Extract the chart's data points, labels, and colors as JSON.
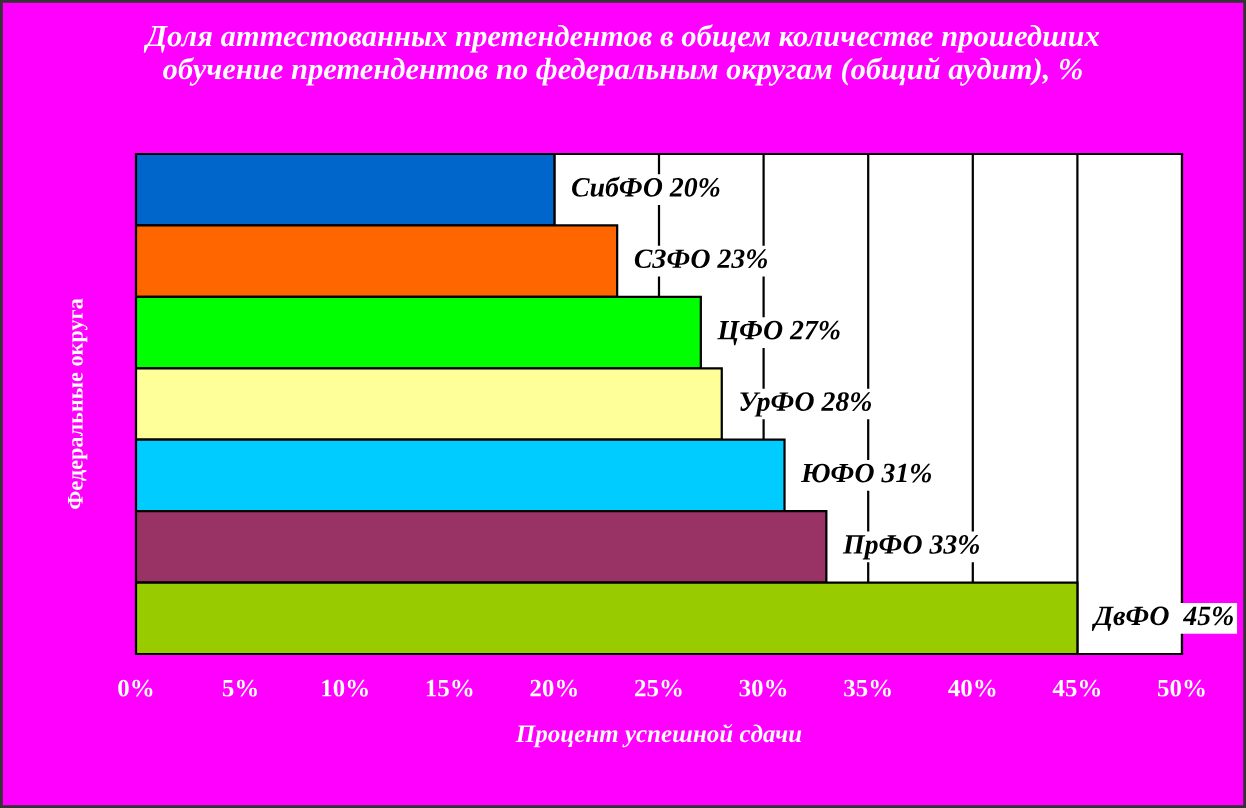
{
  "chart_data": {
    "type": "bar",
    "orientation": "horizontal",
    "title": "Доля аттестованных претендентов в общем количестве прошедших\nобучение претендентов по федеральным округам (общий аудит), %",
    "xlabel": "Процент успешной сдачи",
    "ylabel": "Федеральные округа",
    "categories": [
      null,
      null,
      null,
      null,
      null,
      null,
      null
    ],
    "values": [
      20,
      23,
      27,
      28,
      31,
      33,
      45
    ],
    "colors": [
      "#0066cc",
      "#ff6600",
      "#00ff00",
      "#ffff99",
      "#00ccff",
      "#993366",
      "#99cc00"
    ],
    "value_labels": [
      "СибФО 20%",
      "СЗФО 23%",
      "ЦФО 27%",
      "УрФО 28%",
      "ЮФО 31%",
      "ПрФО 33%",
      "ДвФО  45%"
    ],
    "xlim": [
      0,
      50
    ],
    "xticks": [
      {
        "value": 0,
        "label": "0%"
      },
      {
        "value": 5,
        "label": "5%"
      },
      {
        "value": 10,
        "label": "10%"
      },
      {
        "value": 15,
        "label": "15%"
      },
      {
        "value": 20,
        "label": "20%"
      },
      {
        "value": 25,
        "label": "25%"
      },
      {
        "value": 30,
        "label": "30%"
      },
      {
        "value": 35,
        "label": "35%"
      },
      {
        "value": 40,
        "label": "40%"
      },
      {
        "value": 45,
        "label": "45%"
      },
      {
        "value": 50,
        "label": "50%"
      }
    ],
    "grid": "x",
    "legend": false
  }
}
